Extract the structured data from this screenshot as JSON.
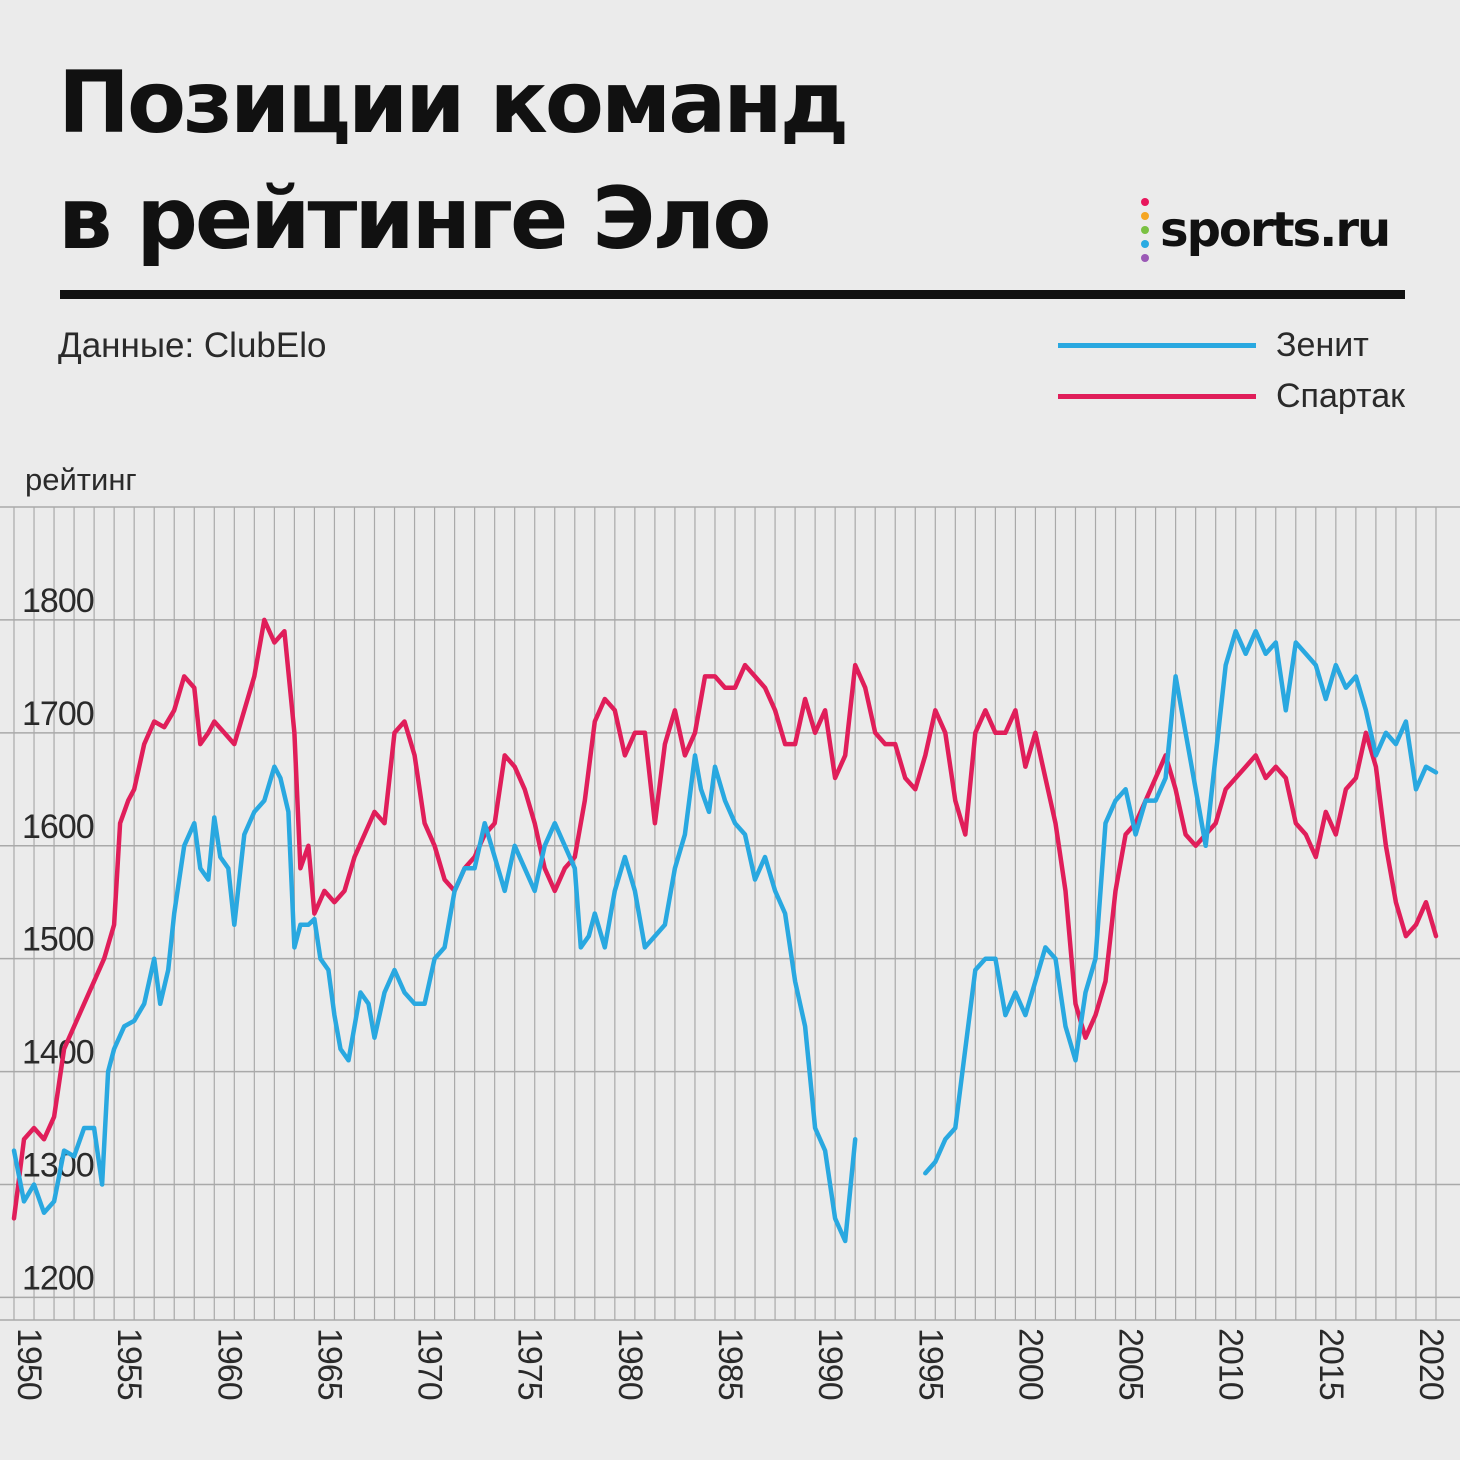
{
  "header": {
    "title_line1": "Позиции команд",
    "title_line2": "в рейтинге Эло",
    "source": "Данные: ClubElo"
  },
  "logo": {
    "text": "sports.ru",
    "dot_colors": [
      "#e8175d",
      "#f5a623",
      "#7ac142",
      "#29abe2",
      "#9b59b6"
    ]
  },
  "colors": {
    "background": "#ebebeb",
    "grid": "#a9a9a9",
    "overlap": "#1a2550"
  },
  "chart_data": {
    "type": "line",
    "ylabel": "рейтинг",
    "ylim": [
      1180,
      1900
    ],
    "xlim": [
      1950,
      2021.5
    ],
    "y_ticks": [
      1200,
      1300,
      1400,
      1500,
      1600,
      1700,
      1800
    ],
    "x_ticks": [
      1950,
      1955,
      1960,
      1965,
      1970,
      1975,
      1980,
      1985,
      1990,
      1995,
      2000,
      2005,
      2010,
      2015,
      2020
    ],
    "grid": "vertical every year, horizontal every 100",
    "legend_position": "top-right",
    "series": [
      {
        "name": "Зенит",
        "color": "#29a8e0",
        "points": [
          [
            1950.0,
            1330
          ],
          [
            1950.5,
            1285
          ],
          [
            1951.0,
            1300
          ],
          [
            1951.5,
            1275
          ],
          [
            1952.0,
            1285
          ],
          [
            1952.5,
            1330
          ],
          [
            1953.0,
            1325
          ],
          [
            1953.5,
            1350
          ],
          [
            1954.0,
            1350
          ],
          [
            1954.4,
            1300
          ],
          [
            1954.7,
            1400
          ],
          [
            1955.0,
            1420
          ],
          [
            1955.5,
            1440
          ],
          [
            1956.0,
            1445
          ],
          [
            1956.5,
            1460
          ],
          [
            1957.0,
            1500
          ],
          [
            1957.3,
            1460
          ],
          [
            1957.7,
            1490
          ],
          [
            1958.0,
            1540
          ],
          [
            1958.5,
            1600
          ],
          [
            1959.0,
            1620
          ],
          [
            1959.3,
            1580
          ],
          [
            1959.7,
            1570
          ],
          [
            1960.0,
            1625
          ],
          [
            1960.3,
            1590
          ],
          [
            1960.7,
            1580
          ],
          [
            1961.0,
            1530
          ],
          [
            1961.5,
            1610
          ],
          [
            1962.0,
            1630
          ],
          [
            1962.5,
            1640
          ],
          [
            1963.0,
            1670
          ],
          [
            1963.3,
            1660
          ],
          [
            1963.7,
            1630
          ],
          [
            1964.0,
            1510
          ],
          [
            1964.3,
            1530
          ],
          [
            1964.7,
            1530
          ],
          [
            1965.0,
            1535
          ],
          [
            1965.3,
            1500
          ],
          [
            1965.7,
            1490
          ],
          [
            1966.0,
            1450
          ],
          [
            1966.3,
            1420
          ],
          [
            1966.7,
            1410
          ],
          [
            1967.0,
            1440
          ],
          [
            1967.3,
            1470
          ],
          [
            1967.7,
            1460
          ],
          [
            1968.0,
            1430
          ],
          [
            1968.5,
            1470
          ],
          [
            1969.0,
            1490
          ],
          [
            1969.5,
            1470
          ],
          [
            1970.0,
            1460
          ],
          [
            1970.5,
            1460
          ],
          [
            1971.0,
            1500
          ],
          [
            1971.5,
            1510
          ],
          [
            1972.0,
            1560
          ],
          [
            1972.5,
            1580
          ],
          [
            1973.0,
            1580
          ],
          [
            1973.5,
            1620
          ],
          [
            1974.0,
            1590
          ],
          [
            1974.5,
            1560
          ],
          [
            1975.0,
            1600
          ],
          [
            1975.5,
            1580
          ],
          [
            1976.0,
            1560
          ],
          [
            1976.5,
            1600
          ],
          [
            1977.0,
            1620
          ],
          [
            1977.5,
            1600
          ],
          [
            1978.0,
            1580
          ],
          [
            1978.3,
            1510
          ],
          [
            1978.7,
            1520
          ],
          [
            1979.0,
            1540
          ],
          [
            1979.5,
            1510
          ],
          [
            1980.0,
            1560
          ],
          [
            1980.5,
            1590
          ],
          [
            1981.0,
            1560
          ],
          [
            1981.5,
            1510
          ],
          [
            1982.0,
            1520
          ],
          [
            1982.5,
            1530
          ],
          [
            1983.0,
            1580
          ],
          [
            1983.5,
            1610
          ],
          [
            1984.0,
            1680
          ],
          [
            1984.3,
            1650
          ],
          [
            1984.7,
            1630
          ],
          [
            1985.0,
            1670
          ],
          [
            1985.5,
            1640
          ],
          [
            1986.0,
            1620
          ],
          [
            1986.5,
            1610
          ],
          [
            1987.0,
            1570
          ],
          [
            1987.5,
            1590
          ],
          [
            1988.0,
            1560
          ],
          [
            1988.5,
            1540
          ],
          [
            1989.0,
            1480
          ],
          [
            1989.5,
            1440
          ],
          [
            1990.0,
            1350
          ],
          [
            1990.5,
            1330
          ],
          [
            1991.0,
            1270
          ],
          [
            1991.5,
            1250
          ],
          [
            1992.0,
            1340
          ]
        ],
        "points_after_gap": [
          [
            1995.5,
            1310
          ],
          [
            1996.0,
            1320
          ],
          [
            1996.5,
            1340
          ],
          [
            1997.0,
            1350
          ],
          [
            1997.5,
            1420
          ],
          [
            1998.0,
            1490
          ],
          [
            1998.5,
            1500
          ],
          [
            1999.0,
            1500
          ],
          [
            1999.5,
            1450
          ],
          [
            2000.0,
            1470
          ],
          [
            2000.5,
            1450
          ],
          [
            2001.0,
            1480
          ],
          [
            2001.5,
            1510
          ],
          [
            2002.0,
            1500
          ],
          [
            2002.5,
            1440
          ],
          [
            2003.0,
            1410
          ],
          [
            2003.5,
            1470
          ],
          [
            2004.0,
            1500
          ],
          [
            2004.5,
            1620
          ],
          [
            2005.0,
            1640
          ],
          [
            2005.5,
            1650
          ],
          [
            2006.0,
            1610
          ],
          [
            2006.5,
            1640
          ],
          [
            2007.0,
            1640
          ],
          [
            2007.5,
            1660
          ],
          [
            2008.0,
            1750
          ],
          [
            2008.5,
            1700
          ],
          [
            2009.0,
            1650
          ],
          [
            2009.5,
            1600
          ],
          [
            2010.0,
            1680
          ],
          [
            2010.5,
            1760
          ],
          [
            2011.0,
            1790
          ],
          [
            2011.5,
            1770
          ],
          [
            2012.0,
            1790
          ],
          [
            2012.5,
            1770
          ],
          [
            2013.0,
            1780
          ],
          [
            2013.5,
            1720
          ],
          [
            2014.0,
            1780
          ],
          [
            2014.5,
            1770
          ],
          [
            2015.0,
            1760
          ],
          [
            2015.5,
            1730
          ],
          [
            2016.0,
            1760
          ],
          [
            2016.5,
            1740
          ],
          [
            2017.0,
            1750
          ],
          [
            2017.5,
            1720
          ],
          [
            2018.0,
            1680
          ],
          [
            2018.5,
            1700
          ],
          [
            2019.0,
            1690
          ],
          [
            2019.5,
            1710
          ],
          [
            2020.0,
            1650
          ],
          [
            2020.5,
            1670
          ],
          [
            2021.0,
            1665
          ]
        ]
      },
      {
        "name": "Спартак",
        "color": "#e01e5a",
        "points": [
          [
            1950.0,
            1270
          ],
          [
            1950.5,
            1340
          ],
          [
            1951.0,
            1350
          ],
          [
            1951.5,
            1340
          ],
          [
            1952.0,
            1360
          ],
          [
            1952.5,
            1420
          ],
          [
            1953.0,
            1440
          ],
          [
            1953.5,
            1460
          ],
          [
            1954.0,
            1480
          ],
          [
            1954.5,
            1500
          ],
          [
            1955.0,
            1530
          ],
          [
            1955.3,
            1620
          ],
          [
            1955.7,
            1640
          ],
          [
            1956.0,
            1650
          ],
          [
            1956.5,
            1690
          ],
          [
            1957.0,
            1710
          ],
          [
            1957.5,
            1705
          ],
          [
            1958.0,
            1720
          ],
          [
            1958.5,
            1750
          ],
          [
            1959.0,
            1740
          ],
          [
            1959.3,
            1690
          ],
          [
            1959.7,
            1700
          ],
          [
            1960.0,
            1710
          ],
          [
            1960.5,
            1700
          ],
          [
            1961.0,
            1690
          ],
          [
            1961.5,
            1720
          ],
          [
            1962.0,
            1750
          ],
          [
            1962.5,
            1800
          ],
          [
            1963.0,
            1780
          ],
          [
            1963.5,
            1790
          ],
          [
            1964.0,
            1700
          ],
          [
            1964.3,
            1580
          ],
          [
            1964.7,
            1600
          ],
          [
            1965.0,
            1540
          ],
          [
            1965.5,
            1560
          ],
          [
            1966.0,
            1550
          ],
          [
            1966.5,
            1560
          ],
          [
            1967.0,
            1590
          ],
          [
            1967.5,
            1610
          ],
          [
            1968.0,
            1630
          ],
          [
            1968.5,
            1620
          ],
          [
            1969.0,
            1700
          ],
          [
            1969.5,
            1710
          ],
          [
            1970.0,
            1680
          ],
          [
            1970.5,
            1620
          ],
          [
            1971.0,
            1600
          ],
          [
            1971.5,
            1570
          ],
          [
            1972.0,
            1560
          ],
          [
            1972.5,
            1580
          ],
          [
            1973.0,
            1590
          ],
          [
            1973.5,
            1610
          ],
          [
            1974.0,
            1620
          ],
          [
            1974.5,
            1680
          ],
          [
            1975.0,
            1670
          ],
          [
            1975.5,
            1650
          ],
          [
            1976.0,
            1620
          ],
          [
            1976.5,
            1580
          ],
          [
            1977.0,
            1560
          ],
          [
            1977.5,
            1580
          ],
          [
            1978.0,
            1590
          ],
          [
            1978.5,
            1640
          ],
          [
            1979.0,
            1710
          ],
          [
            1979.5,
            1730
          ],
          [
            1980.0,
            1720
          ],
          [
            1980.5,
            1680
          ],
          [
            1981.0,
            1700
          ],
          [
            1981.5,
            1700
          ],
          [
            1982.0,
            1620
          ],
          [
            1982.5,
            1690
          ],
          [
            1983.0,
            1720
          ],
          [
            1983.5,
            1680
          ],
          [
            1984.0,
            1700
          ],
          [
            1984.5,
            1750
          ],
          [
            1985.0,
            1750
          ],
          [
            1985.5,
            1740
          ],
          [
            1986.0,
            1740
          ],
          [
            1986.5,
            1760
          ],
          [
            1987.0,
            1750
          ],
          [
            1987.5,
            1740
          ],
          [
            1988.0,
            1720
          ],
          [
            1988.5,
            1690
          ],
          [
            1989.0,
            1690
          ],
          [
            1989.5,
            1730
          ],
          [
            1990.0,
            1700
          ],
          [
            1990.5,
            1720
          ],
          [
            1991.0,
            1660
          ],
          [
            1991.5,
            1680
          ],
          [
            1992.0,
            1760
          ],
          [
            1992.5,
            1740
          ],
          [
            1993.0,
            1700
          ],
          [
            1993.5,
            1690
          ],
          [
            1994.0,
            1690
          ],
          [
            1994.5,
            1660
          ],
          [
            1995.0,
            1650
          ],
          [
            1995.5,
            1680
          ],
          [
            1996.0,
            1720
          ],
          [
            1996.5,
            1700
          ],
          [
            1997.0,
            1640
          ],
          [
            1997.5,
            1610
          ],
          [
            1998.0,
            1700
          ],
          [
            1998.5,
            1720
          ],
          [
            1999.0,
            1700
          ],
          [
            1999.5,
            1700
          ],
          [
            2000.0,
            1720
          ],
          [
            2000.5,
            1670
          ],
          [
            2001.0,
            1700
          ],
          [
            2001.5,
            1660
          ],
          [
            2002.0,
            1620
          ],
          [
            2002.5,
            1560
          ],
          [
            2003.0,
            1460
          ],
          [
            2003.5,
            1430
          ],
          [
            2004.0,
            1450
          ],
          [
            2004.5,
            1480
          ],
          [
            2005.0,
            1560
          ],
          [
            2005.5,
            1610
          ],
          [
            2006.0,
            1620
          ],
          [
            2006.5,
            1640
          ],
          [
            2007.0,
            1660
          ],
          [
            2007.5,
            1680
          ],
          [
            2008.0,
            1650
          ],
          [
            2008.5,
            1610
          ],
          [
            2009.0,
            1600
          ],
          [
            2009.5,
            1610
          ],
          [
            2010.0,
            1620
          ],
          [
            2010.5,
            1650
          ],
          [
            2011.0,
            1660
          ],
          [
            2011.5,
            1670
          ],
          [
            2012.0,
            1680
          ],
          [
            2012.5,
            1660
          ],
          [
            2013.0,
            1670
          ],
          [
            2013.5,
            1660
          ],
          [
            2014.0,
            1620
          ],
          [
            2014.5,
            1610
          ],
          [
            2015.0,
            1590
          ],
          [
            2015.5,
            1630
          ],
          [
            2016.0,
            1610
          ],
          [
            2016.5,
            1650
          ],
          [
            2017.0,
            1660
          ],
          [
            2017.5,
            1700
          ],
          [
            2018.0,
            1670
          ],
          [
            2018.5,
            1600
          ],
          [
            2019.0,
            1550
          ],
          [
            2019.5,
            1520
          ],
          [
            2020.0,
            1530
          ],
          [
            2020.5,
            1550
          ],
          [
            2021.0,
            1520
          ]
        ]
      }
    ]
  }
}
